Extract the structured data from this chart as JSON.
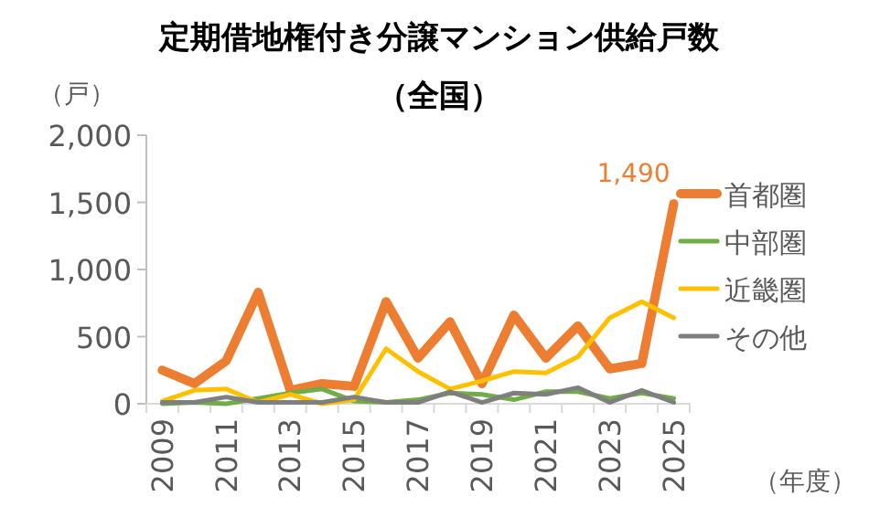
{
  "chart_data": {
    "type": "line",
    "title": "定期借地権付き分譲マンション供給戸数",
    "subtitle": "（全国）",
    "ylabel": "（戸）",
    "xlabel": "（年度）",
    "categories": [
      "2009",
      null,
      "2011",
      null,
      "2013",
      null,
      "2015",
      null,
      "2017",
      null,
      "2019",
      null,
      "2021",
      null,
      "2023",
      null,
      "2025"
    ],
    "ylim": [
      0,
      2000
    ],
    "yticks": [
      {
        "value": 0,
        "label": "0"
      },
      {
        "value": 500,
        "label": "500"
      },
      {
        "value": 1000,
        "label": "1,000"
      },
      {
        "value": 1500,
        "label": "1,500"
      },
      {
        "value": 2000,
        "label": "2,000"
      }
    ],
    "grid": false,
    "legend": "right",
    "marker": "none",
    "line_style": "solid",
    "series": [
      {
        "name": "首都圏",
        "color": "#ed7d31",
        "values": [
          250,
          150,
          320,
          830,
          100,
          150,
          130,
          760,
          340,
          610,
          150,
          660,
          340,
          580,
          260,
          300,
          1490
        ],
        "value_labels": [
          null,
          null,
          null,
          null,
          null,
          null,
          null,
          null,
          null,
          null,
          null,
          null,
          null,
          null,
          null,
          null,
          "1,490"
        ]
      },
      {
        "name": "中部圏",
        "color": "#70ad47",
        "values": [
          0,
          10,
          0,
          40,
          80,
          110,
          20,
          10,
          30,
          80,
          70,
          30,
          90,
          90,
          40,
          80,
          40
        ]
      },
      {
        "name": "近畿圏",
        "color": "#ffc000",
        "values": [
          20,
          100,
          110,
          10,
          70,
          0,
          30,
          410,
          240,
          110,
          170,
          240,
          230,
          350,
          640,
          760,
          640
        ]
      },
      {
        "name": "その他",
        "color": "#7f7f7f",
        "values": [
          10,
          10,
          50,
          10,
          10,
          10,
          50,
          10,
          10,
          90,
          10,
          80,
          70,
          120,
          10,
          100,
          10
        ]
      }
    ]
  }
}
